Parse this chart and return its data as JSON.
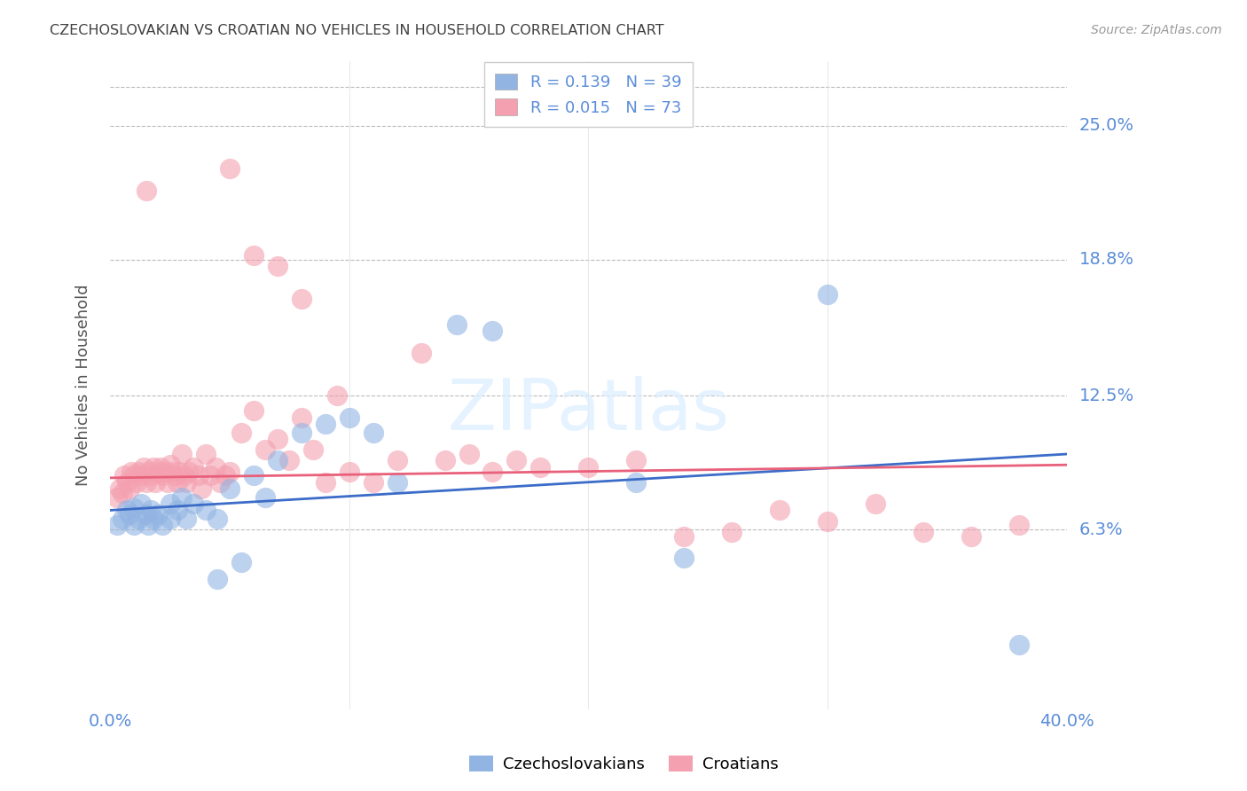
{
  "title": "CZECHOSLOVAKIAN VS CROATIAN NO VEHICLES IN HOUSEHOLD CORRELATION CHART",
  "source": "Source: ZipAtlas.com",
  "ylabel": "No Vehicles in Household",
  "ytick_labels": [
    "6.3%",
    "12.5%",
    "18.8%",
    "25.0%"
  ],
  "ytick_values": [
    0.063,
    0.125,
    0.188,
    0.25
  ],
  "xlim": [
    0.0,
    0.4
  ],
  "ylim": [
    -0.02,
    0.28
  ],
  "top_line_y": 0.268,
  "watermark": "ZIPatlas",
  "legend_line1": "R = 0.139   N = 39",
  "legend_line2": "R = 0.015   N = 73",
  "blue_color": "#92B4E3",
  "pink_color": "#F4A0B0",
  "blue_line_color": "#3B6CC8",
  "pink_line_color": "#E8607A",
  "label_color": "#5B8DD9",
  "title_color": "#404040",
  "blue_trend_x": [
    0.0,
    0.4
  ],
  "blue_trend_y": [
    0.072,
    0.098
  ],
  "pink_trend_x": [
    0.0,
    0.4
  ],
  "pink_trend_y": [
    0.087,
    0.093
  ],
  "blue_x": [
    0.003,
    0.005,
    0.007,
    0.008,
    0.01,
    0.01,
    0.012,
    0.013,
    0.015,
    0.016,
    0.017,
    0.018,
    0.02,
    0.022,
    0.025,
    0.025,
    0.028,
    0.03,
    0.032,
    0.035,
    0.04,
    0.045,
    0.05,
    0.06,
    0.065,
    0.07,
    0.08,
    0.09,
    0.1,
    0.11,
    0.12,
    0.145,
    0.16,
    0.22,
    0.24,
    0.3,
    0.38,
    0.045,
    0.055
  ],
  "blue_y": [
    0.065,
    0.068,
    0.072,
    0.07,
    0.065,
    0.073,
    0.068,
    0.075,
    0.07,
    0.065,
    0.072,
    0.068,
    0.07,
    0.065,
    0.075,
    0.068,
    0.072,
    0.078,
    0.068,
    0.075,
    0.072,
    0.068,
    0.082,
    0.088,
    0.078,
    0.095,
    0.108,
    0.112,
    0.115,
    0.108,
    0.085,
    0.158,
    0.155,
    0.085,
    0.05,
    0.172,
    0.01,
    0.04,
    0.048
  ],
  "pink_x": [
    0.003,
    0.004,
    0.005,
    0.006,
    0.007,
    0.008,
    0.009,
    0.01,
    0.011,
    0.012,
    0.013,
    0.014,
    0.015,
    0.016,
    0.017,
    0.018,
    0.019,
    0.02,
    0.021,
    0.022,
    0.023,
    0.024,
    0.025,
    0.026,
    0.027,
    0.028,
    0.029,
    0.03,
    0.031,
    0.032,
    0.033,
    0.035,
    0.037,
    0.038,
    0.04,
    0.042,
    0.044,
    0.046,
    0.048,
    0.05,
    0.055,
    0.06,
    0.065,
    0.07,
    0.075,
    0.08,
    0.085,
    0.09,
    0.095,
    0.1,
    0.11,
    0.12,
    0.13,
    0.14,
    0.15,
    0.16,
    0.17,
    0.18,
    0.2,
    0.22,
    0.24,
    0.26,
    0.28,
    0.3,
    0.32,
    0.34,
    0.36,
    0.38,
    0.05,
    0.06,
    0.07,
    0.08,
    0.015
  ],
  "pink_y": [
    0.078,
    0.082,
    0.08,
    0.088,
    0.085,
    0.082,
    0.09,
    0.088,
    0.085,
    0.09,
    0.088,
    0.092,
    0.085,
    0.09,
    0.088,
    0.092,
    0.085,
    0.09,
    0.092,
    0.088,
    0.09,
    0.085,
    0.093,
    0.09,
    0.088,
    0.085,
    0.09,
    0.098,
    0.088,
    0.085,
    0.09,
    0.092,
    0.088,
    0.082,
    0.098,
    0.088,
    0.092,
    0.085,
    0.088,
    0.09,
    0.108,
    0.118,
    0.1,
    0.105,
    0.095,
    0.115,
    0.1,
    0.085,
    0.125,
    0.09,
    0.085,
    0.095,
    0.145,
    0.095,
    0.098,
    0.09,
    0.095,
    0.092,
    0.092,
    0.095,
    0.06,
    0.062,
    0.072,
    0.067,
    0.075,
    0.062,
    0.06,
    0.065,
    0.23,
    0.19,
    0.185,
    0.17,
    0.22
  ]
}
